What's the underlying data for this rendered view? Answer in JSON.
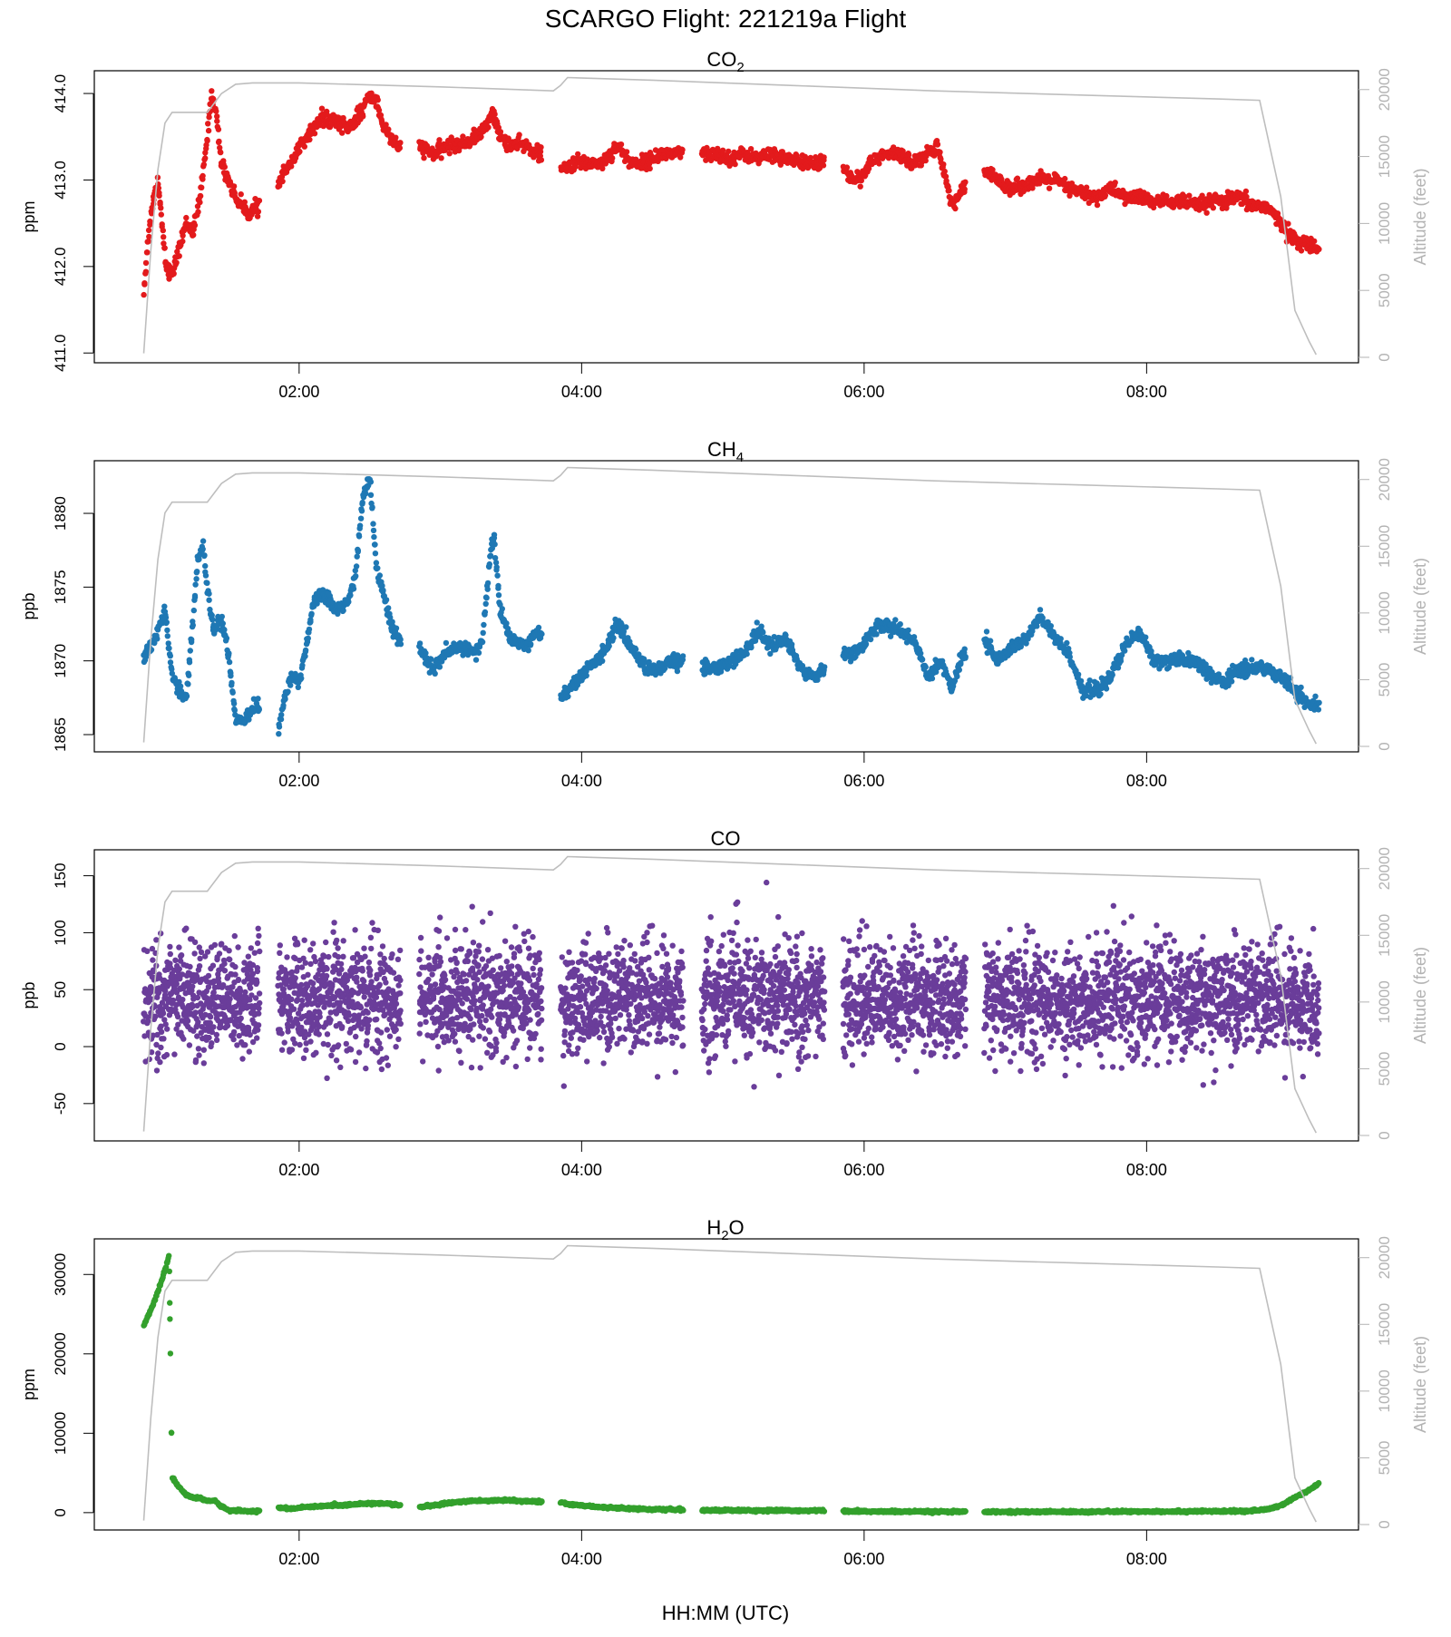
{
  "page_title": "SCARGO Flight: 221219a  Flight",
  "x_axis_label": "HH:MM (UTC)",
  "x_ticks": [
    "02:00",
    "04:00",
    "06:00",
    "08:00"
  ],
  "x_tick_hours": [
    2,
    4,
    6,
    8
  ],
  "x_range_hours": [
    0.55,
    9.5
  ],
  "right_axis": {
    "label": "Altitude (feet)",
    "ticks": [
      0,
      5000,
      10000,
      15000,
      20000
    ],
    "color": "#b3b3b3"
  },
  "altitude_profile": {
    "name": "Altitude",
    "color": "#bebebe",
    "t_hours": [
      0.9,
      0.95,
      1.0,
      1.05,
      1.1,
      1.17,
      1.35,
      1.45,
      1.55,
      1.67,
      2.0,
      3.0,
      3.8,
      3.85,
      3.9,
      4.5,
      5.5,
      6.5,
      7.5,
      8.5,
      8.8,
      8.95,
      9.05,
      9.15,
      9.2
    ],
    "altitude_ft": [
      300,
      8000,
      14000,
      17500,
      18300,
      18300,
      18300,
      19700,
      20400,
      20500,
      20500,
      20200,
      19900,
      20300,
      20900,
      20700,
      20300,
      19900,
      19600,
      19300,
      19200,
      12000,
      3500,
      1200,
      200
    ]
  },
  "chart_data": [
    {
      "type": "scatter",
      "title_main": "CO",
      "title_sub": "2",
      "title": "CO2",
      "ylabel": "ppm",
      "ylim": [
        410.95,
        414.2
      ],
      "yticks": [
        411.0,
        412.0,
        413.0,
        414.0
      ],
      "ytick_labels": [
        "411.0",
        "412.0",
        "413.0",
        "414.0"
      ],
      "color": "#e31a1c",
      "series": [
        {
          "x": [
            0.9,
            0.93,
            0.96,
            1.0,
            1.03,
            1.06,
            1.1,
            1.15,
            1.2,
            1.25,
            1.3,
            1.35,
            1.38,
            1.41,
            1.45,
            1.5,
            1.55,
            1.6,
            1.65,
            1.7,
            1.78,
            1.85,
            1.95,
            2.05,
            2.15,
            2.25,
            2.35,
            2.45,
            2.5,
            2.55,
            2.6,
            2.65,
            2.7,
            2.85,
            2.95,
            3.05,
            3.15,
            3.25,
            3.32,
            3.37,
            3.42,
            3.5,
            3.6,
            3.7,
            3.75,
            3.85,
            3.95,
            4.05,
            4.15,
            4.25,
            4.35,
            4.45,
            4.55,
            4.65,
            4.72,
            4.85,
            4.95,
            5.05,
            5.15,
            5.25,
            5.35,
            5.45,
            5.55,
            5.65,
            5.72,
            5.85,
            5.95,
            6.05,
            6.15,
            6.25,
            6.35,
            6.45,
            6.52,
            6.58,
            6.62,
            6.7,
            6.75,
            6.85,
            6.95,
            7.05,
            7.15,
            7.25,
            7.35,
            7.45,
            7.55,
            7.65,
            7.75,
            7.85,
            7.95,
            8.05,
            8.15,
            8.25,
            8.35,
            8.45,
            8.55,
            8.65,
            8.75,
            8.85,
            8.95,
            9.05,
            9.15,
            9.22
          ],
          "y": [
            411.7,
            412.3,
            412.7,
            413.0,
            412.5,
            412.0,
            411.9,
            412.2,
            412.5,
            412.4,
            412.8,
            413.5,
            414.0,
            413.8,
            413.2,
            413.0,
            412.8,
            412.7,
            412.6,
            412.7,
            412.9,
            413.0,
            413.2,
            413.5,
            413.7,
            413.7,
            413.6,
            413.8,
            414.0,
            413.9,
            413.6,
            413.5,
            413.4,
            413.4,
            413.3,
            413.4,
            413.4,
            413.5,
            413.6,
            413.8,
            413.5,
            413.4,
            413.4,
            413.3,
            413.3,
            413.1,
            413.2,
            413.2,
            413.2,
            413.4,
            413.2,
            413.2,
            413.3,
            413.3,
            413.3,
            413.3,
            413.3,
            413.25,
            413.3,
            413.25,
            413.3,
            413.25,
            413.2,
            413.2,
            413.2,
            413.1,
            413.0,
            413.2,
            413.3,
            413.3,
            413.2,
            413.3,
            413.4,
            413.0,
            412.7,
            412.9,
            412.8,
            413.1,
            413.0,
            412.9,
            412.95,
            413.0,
            413.0,
            412.9,
            412.85,
            412.8,
            412.9,
            412.8,
            412.8,
            412.75,
            412.75,
            412.75,
            412.7,
            412.75,
            412.75,
            412.8,
            412.7,
            412.7,
            412.5,
            412.3,
            412.25,
            412.2
          ]
        }
      ]
    },
    {
      "type": "scatter",
      "title_main": "CH",
      "title_sub": "4",
      "title": "CH4",
      "ylabel": "ppb",
      "ylim": [
        1864.2,
        1883.2
      ],
      "yticks": [
        1865,
        1870,
        1875,
        1880
      ],
      "ytick_labels": [
        "1865",
        "1870",
        "1875",
        "1880"
      ],
      "color": "#1f78b4",
      "series": [
        {
          "x": [
            0.9,
            0.95,
            1.0,
            1.05,
            1.1,
            1.15,
            1.2,
            1.25,
            1.28,
            1.32,
            1.36,
            1.4,
            1.45,
            1.5,
            1.55,
            1.6,
            1.65,
            1.7,
            1.85,
            1.9,
            1.95,
            2.0,
            2.05,
            2.1,
            2.15,
            2.2,
            2.25,
            2.3,
            2.35,
            2.4,
            2.45,
            2.5,
            2.55,
            2.6,
            2.65,
            2.7,
            2.85,
            2.95,
            3.05,
            3.15,
            3.25,
            3.3,
            3.35,
            3.38,
            3.42,
            3.5,
            3.6,
            3.7,
            3.75,
            3.85,
            3.95,
            4.05,
            4.15,
            4.25,
            4.35,
            4.45,
            4.55,
            4.65,
            4.72,
            4.85,
            4.95,
            5.05,
            5.15,
            5.25,
            5.35,
            5.45,
            5.55,
            5.65,
            5.72,
            5.85,
            5.95,
            6.05,
            6.15,
            6.25,
            6.35,
            6.45,
            6.55,
            6.62,
            6.7,
            6.75,
            6.85,
            6.95,
            7.05,
            7.15,
            7.25,
            7.35,
            7.45,
            7.55,
            7.65,
            7.75,
            7.85,
            7.95,
            8.05,
            8.15,
            8.25,
            8.35,
            8.45,
            8.55,
            8.65,
            8.75,
            8.85,
            8.95,
            9.05,
            9.15,
            9.22
          ],
          "y": [
            1870.5,
            1871.0,
            1872.0,
            1873.5,
            1869.0,
            1868.0,
            1867.5,
            1873.0,
            1876.5,
            1878.0,
            1874.0,
            1872.0,
            1873.0,
            1870.5,
            1866.0,
            1866.0,
            1866.5,
            1867.0,
            1865.2,
            1867.5,
            1869.0,
            1868.5,
            1871.0,
            1874.0,
            1874.5,
            1874.5,
            1873.5,
            1873.5,
            1874.0,
            1876.0,
            1881.0,
            1882.5,
            1876.0,
            1874.5,
            1872.5,
            1871.5,
            1870.8,
            1869.5,
            1870.5,
            1871.0,
            1870.5,
            1871.5,
            1877.0,
            1878.5,
            1873.5,
            1871.5,
            1871.0,
            1872.0,
            1871.0,
            1867.5,
            1868.5,
            1869.5,
            1870.5,
            1872.5,
            1871.0,
            1869.5,
            1869.5,
            1870.0,
            1870.0,
            1869.5,
            1869.5,
            1870.0,
            1870.5,
            1872.0,
            1871.0,
            1871.5,
            1869.5,
            1869.0,
            1869.5,
            1870.5,
            1870.5,
            1872.0,
            1872.5,
            1872.0,
            1871.5,
            1869.0,
            1870.0,
            1868.0,
            1870.5,
            1870.0,
            1871.5,
            1870.0,
            1871.0,
            1871.5,
            1873.0,
            1871.5,
            1870.5,
            1868.0,
            1868.0,
            1869.0,
            1871.0,
            1872.0,
            1870.0,
            1870.0,
            1870.0,
            1870.0,
            1869.0,
            1868.5,
            1869.5,
            1869.5,
            1869.5,
            1869.0,
            1868.0,
            1867.0,
            1867.0
          ]
        }
      ]
    },
    {
      "type": "scatter",
      "title_main": "CO",
      "title_sub": "",
      "title": "CO",
      "ylabel": "ppb",
      "ylim": [
        -78,
        168
      ],
      "yticks": [
        -50,
        0,
        50,
        100,
        150
      ],
      "ytick_labels": [
        "-50",
        "0",
        "50",
        "100",
        "150"
      ],
      "color": "#6a3d9a",
      "segments_hours": [
        [
          0.9,
          1.72
        ],
        [
          1.85,
          2.72
        ],
        [
          2.85,
          3.72
        ],
        [
          3.85,
          4.72
        ],
        [
          4.85,
          5.72
        ],
        [
          5.85,
          6.72
        ],
        [
          6.85,
          9.22
        ]
      ],
      "series": [
        {
          "x": [
            0.9,
            1.0,
            1.1,
            1.2,
            1.3,
            1.4,
            1.5,
            1.6,
            1.7,
            1.85,
            1.95,
            2.05,
            2.15,
            2.25,
            2.35,
            2.45,
            2.55,
            2.65,
            2.72,
            2.85,
            2.95,
            3.05,
            3.15,
            3.25,
            3.35,
            3.45,
            3.55,
            3.65,
            3.72,
            3.85,
            3.95,
            4.05,
            4.15,
            4.25,
            4.35,
            4.45,
            4.55,
            4.65,
            4.72,
            4.85,
            4.95,
            5.05,
            5.15,
            5.25,
            5.35,
            5.45,
            5.55,
            5.65,
            5.72,
            5.85,
            5.95,
            6.05,
            6.15,
            6.25,
            6.35,
            6.45,
            6.55,
            6.65,
            6.72,
            6.85,
            6.95,
            7.05,
            7.15,
            7.25,
            7.35,
            7.45,
            7.55,
            7.65,
            7.75,
            7.85,
            7.95,
            8.05,
            8.15,
            8.25,
            8.35,
            8.45,
            8.55,
            8.65,
            8.75,
            8.85,
            8.95,
            9.05,
            9.15,
            9.22
          ],
          "y": [
            38,
            40,
            45,
            42,
            40,
            43,
            44,
            41,
            39,
            42,
            45,
            40,
            43,
            46,
            41,
            44,
            42,
            40,
            43,
            42,
            44,
            40,
            45,
            41,
            43,
            42,
            40,
            44,
            41,
            38,
            42,
            40,
            43,
            41,
            39,
            42,
            40,
            43,
            41,
            40,
            42,
            44,
            41,
            43,
            40,
            42,
            41,
            43,
            40,
            42,
            44,
            41,
            43,
            40,
            42,
            41,
            43,
            40,
            42,
            39,
            41,
            43,
            40,
            42,
            41,
            39,
            42,
            40,
            43,
            41,
            39,
            42,
            40,
            41,
            39,
            42,
            40,
            41,
            39,
            41,
            40,
            38,
            39,
            37
          ]
        }
      ]
    },
    {
      "type": "scatter",
      "title_main": "H",
      "title_sub": "2",
      "title_tail": "O",
      "title": "H2O",
      "ylabel": "ppm",
      "ylim": [
        -1500,
        33800
      ],
      "yticks": [
        0,
        10000,
        20000,
        30000
      ],
      "ytick_labels": [
        "0",
        "10000",
        "20000",
        "30000"
      ],
      "color": "#33a02c",
      "series": [
        {
          "x": [
            0.9,
            0.95,
            1.0,
            1.05,
            1.08,
            1.1,
            1.15,
            1.2,
            1.25,
            1.3,
            1.35,
            1.4,
            1.45,
            1.5,
            1.6,
            1.7,
            1.85,
            1.95,
            2.05,
            2.15,
            2.25,
            2.35,
            2.45,
            2.55,
            2.65,
            2.72,
            2.85,
            2.95,
            3.05,
            3.15,
            3.25,
            3.35,
            3.45,
            3.55,
            3.65,
            3.72,
            3.85,
            3.95,
            4.05,
            4.15,
            4.25,
            4.35,
            4.45,
            4.55,
            4.65,
            4.72,
            4.85,
            5.0,
            5.2,
            5.4,
            5.6,
            5.72,
            5.85,
            6.0,
            6.2,
            6.4,
            6.6,
            6.72,
            6.85,
            7.0,
            7.2,
            7.4,
            7.6,
            7.8,
            8.0,
            8.2,
            8.4,
            8.6,
            8.75,
            8.85,
            8.95,
            9.05,
            9.15,
            9.22
          ],
          "y": [
            23500,
            25500,
            27800,
            30500,
            32500,
            4500,
            3200,
            2200,
            1900,
            1800,
            1500,
            1500,
            800,
            300,
            200,
            200,
            600,
            500,
            700,
            800,
            900,
            1000,
            1100,
            1200,
            1100,
            900,
            700,
            900,
            1200,
            1400,
            1500,
            1500,
            1600,
            1500,
            1400,
            1400,
            1300,
            1000,
            800,
            700,
            600,
            500,
            450,
            400,
            400,
            380,
            300,
            300,
            280,
            270,
            250,
            250,
            200,
            150,
            130,
            120,
            110,
            100,
            100,
            100,
            100,
            100,
            120,
            130,
            150,
            160,
            170,
            150,
            250,
            400,
            900,
            1900,
            2800,
            3700
          ]
        }
      ]
    }
  ]
}
